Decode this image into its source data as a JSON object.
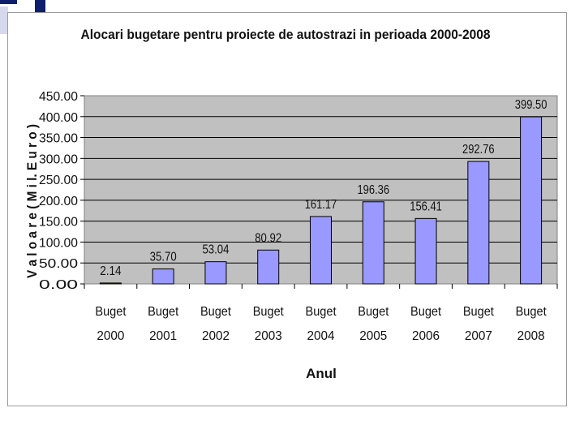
{
  "chart_data": {
    "type": "bar",
    "title": "Alocari bugetare pentru proiecte de autostrazi in perioada 2000-2008",
    "xlabel": "Anul",
    "ylabel": "V a l o a r e  ( M i l.  E u r o )",
    "categories": [
      [
        "Buget",
        "2000"
      ],
      [
        "Buget",
        "2001"
      ],
      [
        "Buget",
        "2002"
      ],
      [
        "Buget",
        "2003"
      ],
      [
        "Buget",
        "2004"
      ],
      [
        "Buget",
        "2005"
      ],
      [
        "Buget",
        "2006"
      ],
      [
        "Buget",
        "2007"
      ],
      [
        "Buget",
        "2008"
      ]
    ],
    "values": [
      2.14,
      35.7,
      53.04,
      80.92,
      161.17,
      196.36,
      156.41,
      292.76,
      399.5
    ],
    "value_labels": [
      "2.14",
      "35.70",
      "53.04",
      "80.92",
      "161.17",
      "196.36",
      "156.41",
      "292.76",
      "399.50"
    ],
    "ylim": [
      0,
      450
    ],
    "yticks": [
      "0.00",
      "50.00",
      "100.00",
      "150.00",
      "200.00",
      "250.00",
      "300.00",
      "350.00",
      "400.00",
      "450.00"
    ],
    "grid": true,
    "legend": "none",
    "colors": {
      "bar_fill": "#9999ff",
      "bar_stroke": "#000000",
      "plot_background": "#c0c0c0",
      "gridline": "#000000"
    }
  },
  "decor": {
    "accent_dark": "#0f1f6e",
    "accent_light": "#d6d9ee"
  }
}
